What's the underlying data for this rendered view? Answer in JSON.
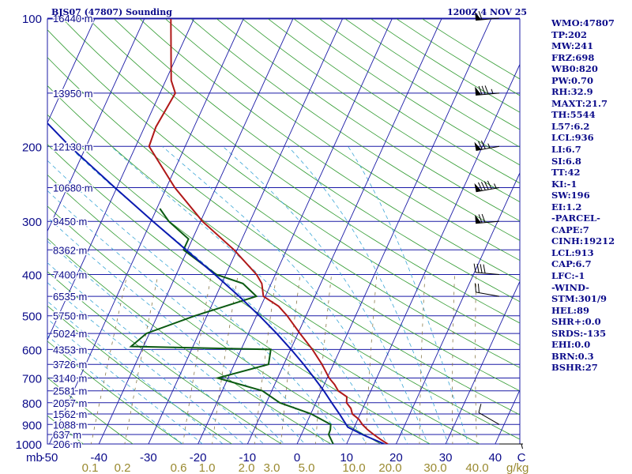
{
  "header": {
    "title": "BJS07 (47807) Sounding",
    "datetime": "1200Z  4 NOV 25"
  },
  "colors": {
    "isobar": "#1a1aa6",
    "isotherm": "#1a1aa6",
    "dry_adiabat": "#2f9a2f",
    "moist_adiabat": "#3aa6d6",
    "mixing_ratio": "#8a7a4a",
    "temperature": "#b01818",
    "dewpoint": "#0b5a12",
    "parcel": "#0b1ab0",
    "text": "#0b0b8a",
    "mixing_label": "#9a8a30",
    "wind": "#000000"
  },
  "stats": [
    "WMO:47807",
    "TP:202",
    "MW:241",
    "FRZ:698",
    "WB0:820",
    "PW:0.70",
    "RH:32.9",
    "MAXT:21.7",
    "TH:5544",
    "L57:6.2",
    "LCL:936",
    "LI:6.7",
    "SI:6.8",
    "TT:42",
    "KI:-1",
    "SW:196",
    "EI:1.2",
    "-PARCEL-",
    "CAPE:7",
    "CINH:19212",
    "LCL:913",
    "CAP:6.7",
    "LFC:-1",
    "-WIND-",
    "STM:301/9",
    "HEL:89",
    "SHR+:0.0",
    "SRDS:-135",
    "EHI:0.0",
    "BRN:0.3",
    "BSHR:27"
  ],
  "chart_data": {
    "type": "line",
    "title": "BJS07 (47807) Sounding",
    "subtitle": "1200Z  4 NOV 25",
    "xlabel": "C",
    "ylabel": "mb",
    "y_scale": "log",
    "ylim": [
      1000,
      100
    ],
    "xlim": [
      -50,
      45
    ],
    "x_tick_labels": [
      "-50",
      "-40",
      "-30",
      "-20",
      "-10",
      "0",
      "10",
      "20",
      "30",
      "40",
      "C"
    ],
    "x_ticks": [
      -50,
      -40,
      -30,
      -20,
      -10,
      0,
      10,
      20,
      30,
      40
    ],
    "y_tick_labels": [
      "100",
      "200",
      "300",
      "400",
      "500",
      "600",
      "700",
      "800",
      "900",
      "1000"
    ],
    "y_ticks": [
      100,
      200,
      300,
      400,
      500,
      600,
      700,
      800,
      900,
      1000
    ],
    "y_axis_unit_label": "mb",
    "mixing_ratio_label_unit": "g/kg",
    "mixing_ratio_labels": [
      "0.1",
      "0.2",
      "0.6",
      "1.0",
      "2.0",
      "3.0",
      "5.0",
      "10.0",
      "20.0",
      "30.0",
      "40.0"
    ],
    "mixing_ratio_values": [
      0.1,
      0.2,
      0.6,
      1.0,
      2.0,
      3.0,
      5.0,
      10.0,
      20.0,
      30.0,
      40.0
    ],
    "height_labels": [
      {
        "p": 100,
        "label": "16440 m"
      },
      {
        "p": 150,
        "label": "13950 m"
      },
      {
        "p": 200,
        "label": "12130 m"
      },
      {
        "p": 250,
        "label": "10680 m"
      },
      {
        "p": 300,
        "label": "9450 m"
      },
      {
        "p": 350,
        "label": "8362 m"
      },
      {
        "p": 400,
        "label": "7400 m"
      },
      {
        "p": 450,
        "label": "6535 m"
      },
      {
        "p": 500,
        "label": "5750 m"
      },
      {
        "p": 550,
        "label": "5024 m"
      },
      {
        "p": 600,
        "label": "4353 m"
      },
      {
        "p": 650,
        "label": "3726 m"
      },
      {
        "p": 700,
        "label": "3140 m"
      },
      {
        "p": 750,
        "label": "2581 m"
      },
      {
        "p": 800,
        "label": "2057 m"
      },
      {
        "p": 850,
        "label": "1562 m"
      },
      {
        "p": 900,
        "label": "1088 m"
      },
      {
        "p": 950,
        "label": "637 m"
      },
      {
        "p": 1000,
        "label": "206 m"
      }
    ],
    "grid": true,
    "series": [
      {
        "key": "temperature",
        "points": [
          {
            "p": 1005,
            "t": 18.5
          },
          {
            "p": 1000,
            "t": 18.3
          },
          {
            "p": 975,
            "t": 16.4
          },
          {
            "p": 950,
            "t": 14.6
          },
          {
            "p": 925,
            "t": 12.9
          },
          {
            "p": 900,
            "t": 11.4
          },
          {
            "p": 875,
            "t": 10.2
          },
          {
            "p": 850,
            "t": 8.4
          },
          {
            "p": 825,
            "t": 7.6
          },
          {
            "p": 800,
            "t": 6.2
          },
          {
            "p": 775,
            "t": 5.7
          },
          {
            "p": 750,
            "t": 3.4
          },
          {
            "p": 725,
            "t": 2.1
          },
          {
            "p": 700,
            "t": 0.4
          },
          {
            "p": 650,
            "t": -2.3
          },
          {
            "p": 600,
            "t": -5.6
          },
          {
            "p": 550,
            "t": -9.6
          },
          {
            "p": 500,
            "t": -13.8
          },
          {
            "p": 475,
            "t": -16.4
          },
          {
            "p": 450,
            "t": -20.4
          },
          {
            "p": 420,
            "t": -21.9
          },
          {
            "p": 400,
            "t": -23.8
          },
          {
            "p": 350,
            "t": -30.6
          },
          {
            "p": 300,
            "t": -39.6
          },
          {
            "p": 250,
            "t": -48.3
          },
          {
            "p": 200,
            "t": -57.3
          },
          {
            "p": 180,
            "t": -57.7
          },
          {
            "p": 150,
            "t": -56.9
          },
          {
            "p": 140,
            "t": -58.9
          },
          {
            "p": 100,
            "t": -64.7
          }
        ]
      },
      {
        "key": "dewpoint",
        "points": [
          {
            "p": 1000,
            "t": 7.3
          },
          {
            "p": 950,
            "t": 5.5
          },
          {
            "p": 925,
            "t": 5.4
          },
          {
            "p": 900,
            "t": 5.0
          },
          {
            "p": 850,
            "t": 0.1
          },
          {
            "p": 800,
            "t": -7.3
          },
          {
            "p": 750,
            "t": -11.9
          },
          {
            "p": 700,
            "t": -22.1
          },
          {
            "p": 650,
            "t": -13.1
          },
          {
            "p": 600,
            "t": -14.0
          },
          {
            "p": 590,
            "t": -42.5
          },
          {
            "p": 550,
            "t": -40.6
          },
          {
            "p": 500,
            "t": -32.4
          },
          {
            "p": 450,
            "t": -21.8
          },
          {
            "p": 420,
            "t": -25.7
          },
          {
            "p": 400,
            "t": -31.9
          },
          {
            "p": 350,
            "t": -40.8
          },
          {
            "p": 330,
            "t": -40.8
          },
          {
            "p": 300,
            "t": -46.4
          },
          {
            "p": 280,
            "t": -49.4
          }
        ]
      },
      {
        "key": "parcel",
        "points": [
          {
            "p": 1000,
            "t": 17.6
          },
          {
            "p": 950,
            "t": 12.3
          },
          {
            "p": 913,
            "t": 8.7
          },
          {
            "p": 850,
            "t": 5.8
          },
          {
            "p": 800,
            "t": 3.2
          },
          {
            "p": 750,
            "t": 0.5
          },
          {
            "p": 700,
            "t": -2.6
          },
          {
            "p": 650,
            "t": -6.0
          },
          {
            "p": 600,
            "t": -9.9
          },
          {
            "p": 550,
            "t": -14.3
          },
          {
            "p": 500,
            "t": -19.4
          },
          {
            "p": 450,
            "t": -25.3
          },
          {
            "p": 400,
            "t": -32.2
          },
          {
            "p": 350,
            "t": -40.3
          },
          {
            "p": 300,
            "t": -49.6
          },
          {
            "p": 250,
            "t": -60.4
          },
          {
            "p": 200,
            "t": -73.3
          },
          {
            "p": 150,
            "t": -88.6
          },
          {
            "p": 120,
            "t": -99.6
          }
        ]
      }
    ],
    "wind_barbs": [
      {
        "p": 100,
        "dir": 265,
        "spd": 60
      },
      {
        "p": 150,
        "dir": 265,
        "spd": 85
      },
      {
        "p": 200,
        "dir": 260,
        "spd": 75
      },
      {
        "p": 250,
        "dir": 260,
        "spd": 95
      },
      {
        "p": 300,
        "dir": 265,
        "spd": 70
      },
      {
        "p": 400,
        "dir": 275,
        "spd": 40
      },
      {
        "p": 450,
        "dir": 280,
        "spd": 20
      },
      {
        "p": 900,
        "dir": 300,
        "spd": 10
      },
      {
        "p": 1000,
        "dir": 90,
        "spd": 5
      }
    ]
  }
}
